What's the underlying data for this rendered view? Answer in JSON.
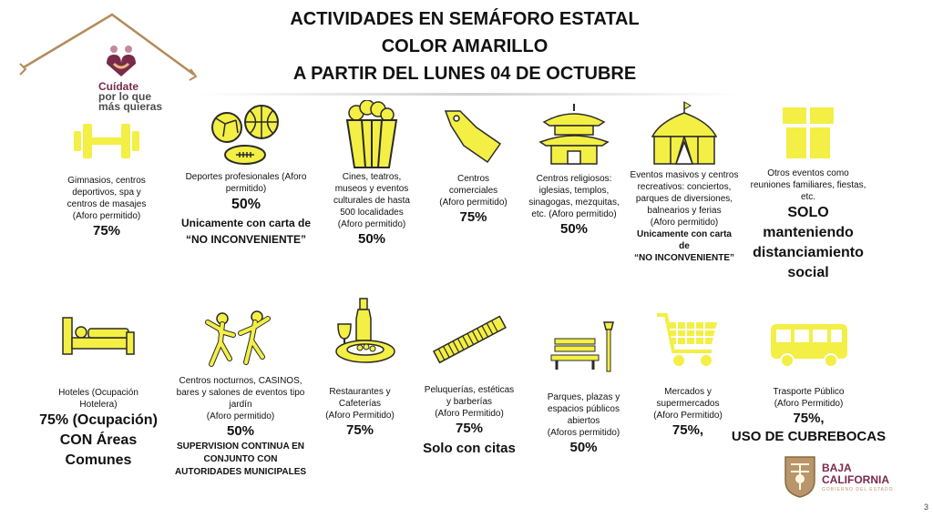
{
  "title": {
    "line1": "ACTIVIDADES EN SEMÁFORO ESTATAL",
    "line2": "COLOR AMARILLO",
    "line3": "A PARTIR DEL LUNES 04 DE OCTUBRE"
  },
  "logo": {
    "line1": "Cuídate",
    "line2": "por lo que",
    "line3": "más quieras",
    "icon": "family-heart-house-icon"
  },
  "colors": {
    "icon_fill": "#f3ef44",
    "icon_stroke": "#2a2a2a",
    "logo_red": "#7a2a4a",
    "roof": "#b58a5a"
  },
  "row1": [
    {
      "icon": "dumbbell-icon",
      "desc1": "Gimnasios, centros",
      "desc2": "deportivos, spa y",
      "desc3": "centros de masajes",
      "desc4": "(Aforo permitido)",
      "value": "75%"
    },
    {
      "icon": "sports-balls-icon",
      "desc1": "Deportes profesionales (Aforo",
      "desc2": "permitido)",
      "value": "50%",
      "note1": "Unicamente con carta de",
      "note2": "“NO INCONVENIENTE”"
    },
    {
      "icon": "popcorn-icon",
      "desc1": "Cines, teatros,",
      "desc2": "museos y eventos",
      "desc3": "culturales de hasta",
      "desc4": "500 localidades",
      "desc5": "(Aforo permitido)",
      "value": "50%"
    },
    {
      "icon": "price-tag-icon",
      "desc1": "Centros",
      "desc2": "comerciales",
      "desc3": "(Aforo permitido)",
      "value": "75%"
    },
    {
      "icon": "temple-icon",
      "desc1": "Centros religiosos:",
      "desc2": "iglesias, templos,",
      "desc3": "sinagogas, mezquitas,",
      "desc4": "etc. (Aforo permitido)",
      "value": "50%"
    },
    {
      "icon": "circus-tent-icon",
      "desc1": "Eventos masivos y centros",
      "desc2": "recreativos: conciertos,",
      "desc3": "parques de diversiones,",
      "desc4": "balnearios y ferias",
      "desc5": "(Aforo permitido)",
      "note1": "Unicamente con carta",
      "note2": "de",
      "note3": "“NO INCONVENIENTE”"
    },
    {
      "icon": "gift-box-icon",
      "desc1": "Otros eventos como",
      "desc2": "reuniones familiares, fiestas,",
      "desc3": "etc.",
      "value1": "SOLO",
      "value2": "manteniendo",
      "value3": "distanciamiento",
      "value4": "social"
    }
  ],
  "row2": [
    {
      "icon": "bed-icon",
      "desc1": "Hoteles (Ocupación",
      "desc2": "Hotelera)",
      "value1": "75% (Ocupación)",
      "value2": "CON Áreas",
      "value3": "Comunes"
    },
    {
      "icon": "dancing-people-icon",
      "desc1": "Centros nocturnos, CASINOS,",
      "desc2": "bares y salones de eventos tipo",
      "desc3": "jardín",
      "desc4": "(Aforo permitido)",
      "value": "50%",
      "note1": "SUPERVISION CONTINUA EN",
      "note2": "CONJUNTO CON",
      "note3": "AUTORIDADES MUNICIPALES"
    },
    {
      "icon": "restaurant-dish-icon",
      "desc1": "Restaurantes y",
      "desc2": "Cafeterías",
      "desc3": "(Aforo Permitido)",
      "value": "75%"
    },
    {
      "icon": "comb-icon",
      "desc1": "Peluquerías, estéticas",
      "desc2": "y barberías",
      "desc3": "(Aforo Permitido)",
      "value": "75%",
      "value2": "Solo con citas"
    },
    {
      "icon": "park-bench-icon",
      "desc1": "Parques, plazas y",
      "desc2": "espacios públicos",
      "desc3": "abiertos",
      "desc4": "(Aforos permitido)",
      "value": "50%"
    },
    {
      "icon": "shopping-cart-icon",
      "desc1": "Mercados y",
      "desc2": "supermercados",
      "desc3": "(Aforo Permitido)",
      "value": "75%,"
    },
    {
      "icon": "bus-icon",
      "desc1": "Trasporte Público",
      "desc2": "(Aforo Permitido)",
      "value": "75%,",
      "value2": "USO DE CUBREBOCAS"
    }
  ],
  "footer": {
    "state_line1": "BAJA",
    "state_line2": "CALIFORNIA",
    "state_sub": "GOBIERNO DEL ESTADO",
    "page": "3",
    "seal": "state-seal-icon"
  }
}
